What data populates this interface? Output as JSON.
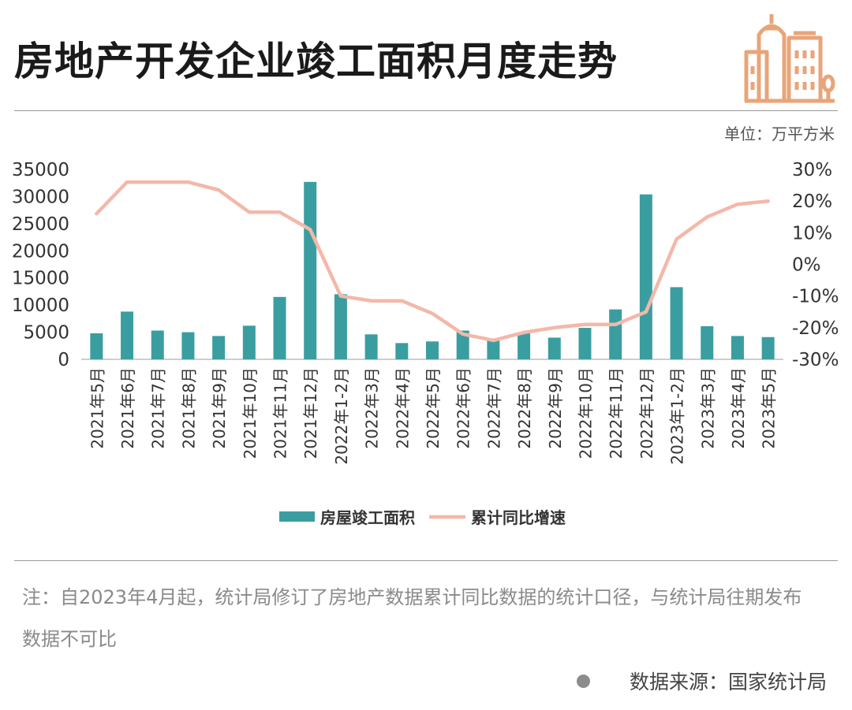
{
  "header": {
    "title": "房地产开发企业竣工面积月度走势"
  },
  "icons": {
    "logo": "city-buildings-icon",
    "source_bullet": "bullet-dot-icon"
  },
  "colors": {
    "bar": "#3a9ea0",
    "line": "#f3b8a9",
    "logo": "#e8a579"
  },
  "chart_data": {
    "type": "bar",
    "unit_label": "单位：万平方米",
    "categories": [
      "2021年5月",
      "2021年6月",
      "2021年7月",
      "2021年8月",
      "2021年9月",
      "2021年10月",
      "2021年11月",
      "2021年12月",
      "2022年1-2月",
      "2022年3月",
      "2022年4月",
      "2022年5月",
      "2022年6月",
      "2022年7月",
      "2022年8月",
      "2022年9月",
      "2022年10月",
      "2022年11月",
      "2022年12月",
      "2023年1-2月",
      "2023年3月",
      "2023年4月",
      "2023年5月"
    ],
    "series": [
      {
        "name": "房屋竣工面积",
        "type": "bar",
        "axis": "left",
        "values": [
          4800,
          8800,
          5300,
          5000,
          4300,
          6200,
          11500,
          32700,
          12000,
          4600,
          3000,
          3300,
          5300,
          3700,
          4800,
          4000,
          5800,
          9200,
          30400,
          13300,
          6100,
          4300,
          4100
        ]
      },
      {
        "name": "累计同比增速",
        "type": "line",
        "axis": "right",
        "values": [
          16,
          26,
          26,
          26,
          23.5,
          16.5,
          16.5,
          11,
          -10,
          -11.5,
          -11.5,
          -15.5,
          -22,
          -24,
          -21.5,
          -20,
          -19,
          -19,
          -15,
          8,
          15,
          19,
          20
        ]
      }
    ],
    "y_left": {
      "min": 0,
      "max": 35000,
      "ticks": [
        "0",
        "5000",
        "10000",
        "15000",
        "20000",
        "25000",
        "30000",
        "35000"
      ]
    },
    "y_right": {
      "min": -30,
      "max": 30,
      "ticks": [
        "-30%",
        "-20%",
        "-10%",
        "0%",
        "10%",
        "20%",
        "30%"
      ]
    },
    "grid": false,
    "legend": "bottom-center"
  },
  "footer": {
    "note": "注：自2023年4月起，统计局修订了房地产数据累计同比数据的统计口径，与统计局往期发布数据不可比",
    "source": "数据来源：国家统计局"
  }
}
